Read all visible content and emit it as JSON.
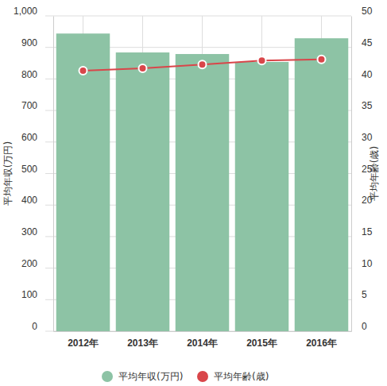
{
  "chart_data": {
    "type": "bar",
    "categories": [
      "2012年",
      "2013年",
      "2014年",
      "2015年",
      "2016年"
    ],
    "series": [
      {
        "name": "平均年収(万円)",
        "type": "bar",
        "color": "#8dc3a5",
        "values": [
          944,
          884,
          879,
          854,
          929
        ]
      },
      {
        "name": "平均年齢(歳)",
        "type": "line",
        "axis": "y2",
        "color": "#d9464a",
        "marker": "circle",
        "values": [
          41.3,
          41.7,
          42.3,
          42.9,
          43.1
        ]
      }
    ],
    "ylabel": "平均年収(万円)",
    "y2label": "平均年齢(歳)",
    "ylim": [
      0,
      1000
    ],
    "yticks": [
      0,
      100,
      200,
      300,
      400,
      500,
      600,
      700,
      800,
      900,
      {
        "value": 1000,
        "label": "1,000"
      }
    ],
    "y2lim": [
      0,
      50
    ],
    "y2ticks": [
      0,
      5,
      10,
      15,
      20,
      25,
      30,
      35,
      40,
      45,
      50
    ],
    "grid": true,
    "legend": "bottom"
  }
}
